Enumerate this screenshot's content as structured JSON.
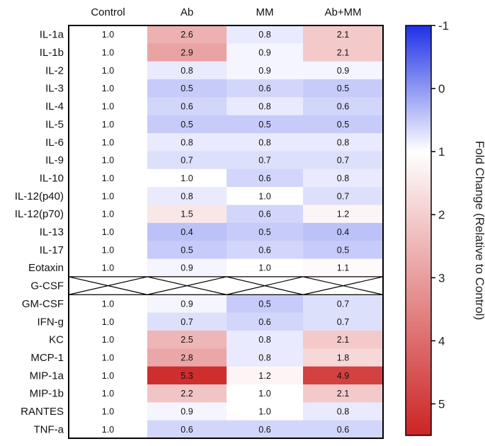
{
  "chart_data": {
    "type": "heatmap",
    "title": "",
    "columns": [
      "Control",
      "Ab",
      "MM",
      "Ab+MM"
    ],
    "rows": [
      "IL-1a",
      "IL-1b",
      "IL-2",
      "IL-3",
      "IL-4",
      "IL-5",
      "IL-6",
      "IL-9",
      "IL-10",
      "IL-12(p40)",
      "IL-12(p70)",
      "IL-13",
      "IL-17",
      "Eotaxin",
      "G-CSF",
      "GM-CSF",
      "IFN-g",
      "KC",
      "MCP-1",
      "MIP-1a",
      "MIP-1b",
      "RANTES",
      "TNF-a"
    ],
    "values": [
      [
        "1.0",
        "2.6",
        "0.8",
        "2.1"
      ],
      [
        "1.0",
        "2.9",
        "0.9",
        "2.1"
      ],
      [
        "1.0",
        "0.8",
        "0.9",
        "0.9"
      ],
      [
        "1.0",
        "0.5",
        "0.6",
        "0.5"
      ],
      [
        "1.0",
        "0.6",
        "0.8",
        "0.6"
      ],
      [
        "1.0",
        "0.5",
        "0.5",
        "0.5"
      ],
      [
        "1.0",
        "0.8",
        "0.8",
        "0.8"
      ],
      [
        "1.0",
        "0.7",
        "0.7",
        "0.7"
      ],
      [
        "1.0",
        "1.0",
        "0.6",
        "0.8"
      ],
      [
        "1.0",
        "0.8",
        "1.0",
        "0.7"
      ],
      [
        "1.0",
        "1.5",
        "0.6",
        "1.2"
      ],
      [
        "1.0",
        "0.4",
        "0.5",
        "0.4"
      ],
      [
        "1.0",
        "0.5",
        "0.6",
        "0.5"
      ],
      [
        "1.0",
        "0.9",
        "1.0",
        "1.1"
      ],
      [
        null,
        null,
        null,
        null
      ],
      [
        "1.0",
        "0.9",
        "0.5",
        "0.7"
      ],
      [
        "1.0",
        "0.7",
        "0.6",
        "0.7"
      ],
      [
        "1.0",
        "2.5",
        "0.8",
        "2.1"
      ],
      [
        "1.0",
        "2.8",
        "0.8",
        "1.8"
      ],
      [
        "1.0",
        "5.3",
        "1.2",
        "4.9"
      ],
      [
        "1.0",
        "2.2",
        "1.0",
        "2.1"
      ],
      [
        "1.0",
        "0.9",
        "1.0",
        "0.8"
      ],
      [
        "1.0",
        "0.6",
        "0.6",
        "0.6"
      ]
    ],
    "color_scale": {
      "label": "Fold Change (Relative to Control)",
      "min": -1,
      "center": 1,
      "max": 5.5,
      "ticks": [
        "-1",
        "0",
        "1",
        "2",
        "3",
        "4",
        "5"
      ],
      "low_color": "#1f30e6",
      "mid_color": "#ffffff",
      "high_color": "#cc2424"
    }
  }
}
